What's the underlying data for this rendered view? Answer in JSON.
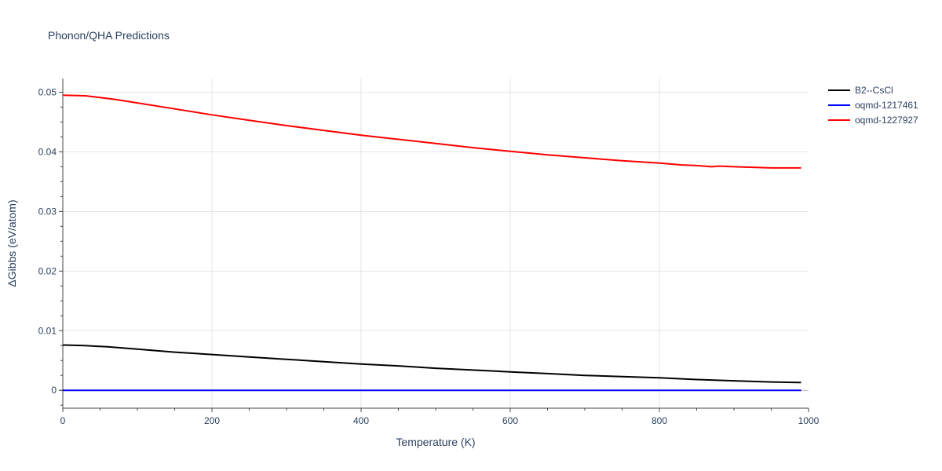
{
  "chart_data": {
    "type": "line",
    "title": "Phonon/QHA Predictions",
    "xlabel": "Temperature (K)",
    "ylabel": "ΔGibbs (eV/atom)",
    "xlim": [
      0,
      1000
    ],
    "ylim": [
      -0.003,
      0.0523
    ],
    "x_ticks": [
      0,
      200,
      400,
      600,
      800,
      1000
    ],
    "y_ticks": [
      0,
      0.01,
      0.02,
      0.03,
      0.04,
      0.05
    ],
    "x_tick_labels": [
      "0",
      "200",
      "400",
      "600",
      "800",
      "1000"
    ],
    "y_tick_labels": [
      "0",
      "0.01",
      "0.02",
      "0.03",
      "0.04",
      "0.05"
    ],
    "grid": true,
    "legend_position": "top-right, outside plot",
    "series": [
      {
        "name": "B2--CsCl",
        "color": "#000000",
        "x": [
          0,
          30,
          60,
          100,
          150,
          200,
          250,
          300,
          350,
          400,
          450,
          500,
          550,
          600,
          650,
          700,
          750,
          800,
          850,
          900,
          950,
          990
        ],
        "y": [
          0.0076,
          0.0075,
          0.0073,
          0.0069,
          0.0064,
          0.006,
          0.0056,
          0.0052,
          0.0048,
          0.0044,
          0.0041,
          0.0037,
          0.0034,
          0.0031,
          0.0028,
          0.0025,
          0.0023,
          0.0021,
          0.0018,
          0.0016,
          0.0014,
          0.0013
        ]
      },
      {
        "name": "oqmd-1217461",
        "color": "#0000ff",
        "x": [
          0,
          990
        ],
        "y": [
          0,
          0
        ]
      },
      {
        "name": "oqmd-1227927",
        "color": "#ff0000",
        "x": [
          0,
          30,
          50,
          70,
          100,
          150,
          200,
          250,
          300,
          350,
          400,
          450,
          500,
          550,
          600,
          650,
          700,
          750,
          800,
          830,
          850,
          870,
          880,
          900,
          950,
          990
        ],
        "y": [
          0.0495,
          0.0494,
          0.0491,
          0.0488,
          0.0482,
          0.0472,
          0.0462,
          0.0453,
          0.0444,
          0.0436,
          0.0428,
          0.0421,
          0.0414,
          0.0407,
          0.0401,
          0.0395,
          0.039,
          0.0385,
          0.0381,
          0.0378,
          0.0377,
          0.0375,
          0.0376,
          0.0375,
          0.0373,
          0.0373
        ]
      }
    ]
  }
}
